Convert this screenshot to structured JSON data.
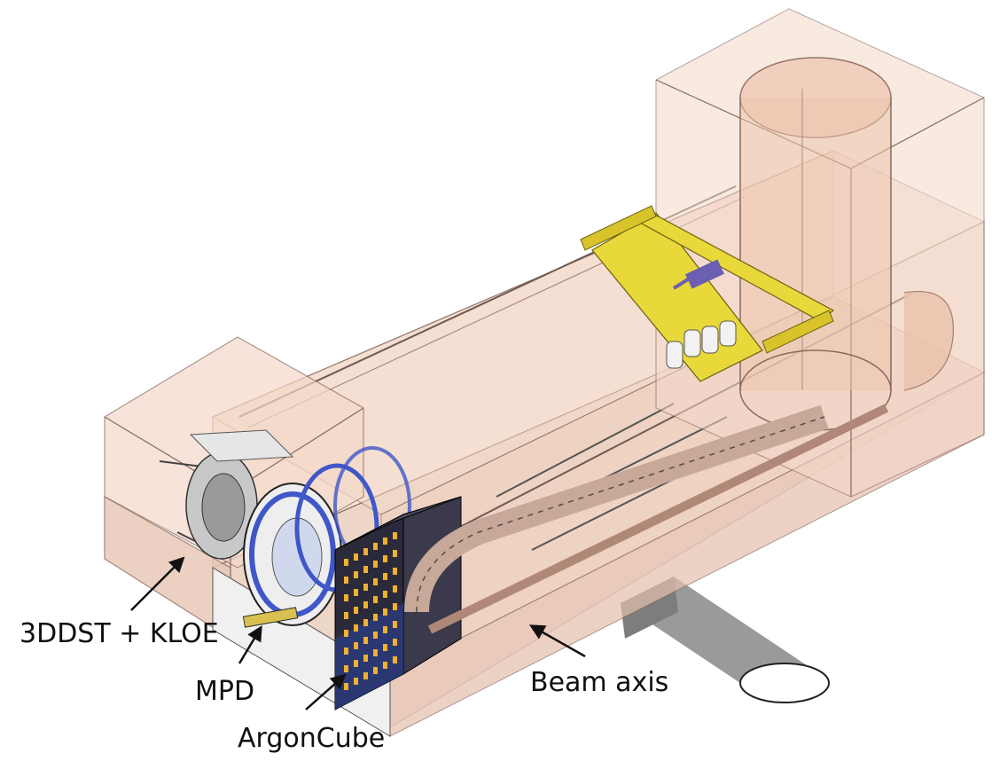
{
  "labels": {
    "detector_a": "3DDST + KLOE",
    "detector_b": "MPD",
    "detector_c": "ArgonCube",
    "beam": "Beam axis"
  },
  "colors": {
    "hall_fill": "#f5ddd0",
    "hall_edge": "#8a6a5c",
    "hall_floor": "#e9c9b8",
    "crane": "#e8d83a",
    "crane_trim": "#6a5fb0",
    "mpd_ring": "#3f57c8",
    "argoncube": "#2a2a3a",
    "argoncube_cell": "#f0b030",
    "beamline_pipe": "#9a9a9a",
    "cable_chain": "#c8a898",
    "arrow": "#111111"
  }
}
